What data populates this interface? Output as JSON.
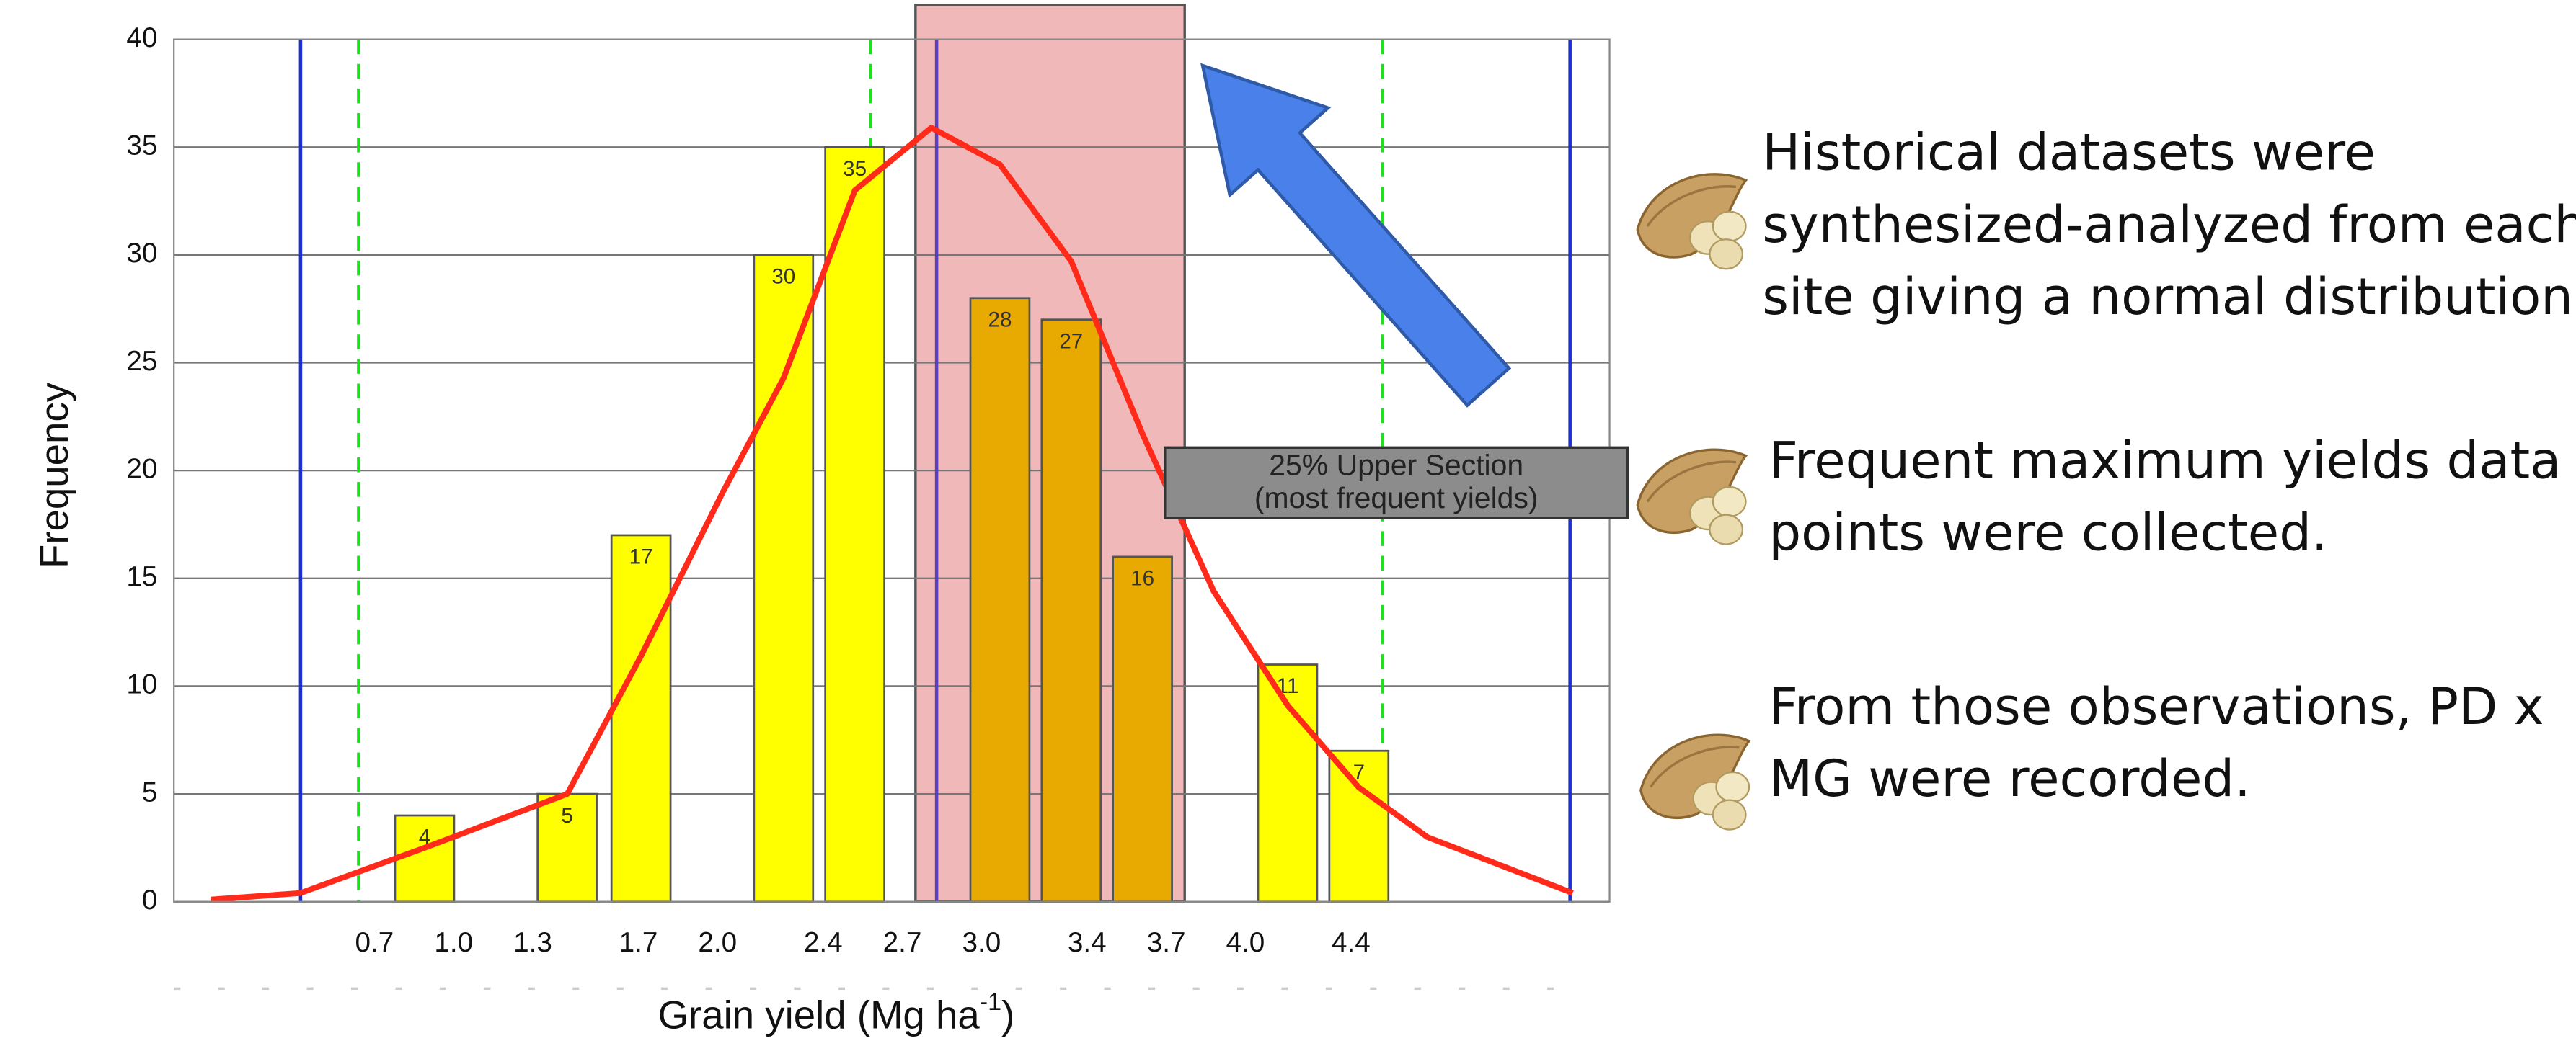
{
  "chart_data": {
    "type": "bar",
    "y_label": "Frequency",
    "x_label": {
      "text": "Grain yield (Mg ha",
      "superscript": "-1",
      "suffix": ")"
    },
    "x": [
      0.89,
      1.43,
      1.71,
      2.25,
      2.52,
      3.07,
      3.34,
      3.61,
      4.16,
      4.43
    ],
    "values": [
      4,
      5,
      17,
      30,
      35,
      28,
      27,
      16,
      11,
      7
    ],
    "colors": [
      "#ffff00",
      "#ffff00",
      "#ffff00",
      "#ffff00",
      "#ffff00",
      "#e8a900",
      "#e8a900",
      "#e8a900",
      "#ffff00",
      "#ffff00"
    ],
    "xlim": [
      -0.06,
      5.38
    ],
    "ylim": [
      0,
      40
    ],
    "yticks": [
      0,
      5,
      10,
      15,
      20,
      25,
      30,
      35,
      40
    ],
    "xticks": [
      0.7,
      {
        "value": 1.0,
        "label": "1.0"
      },
      1.3,
      1.7,
      {
        "value": 2.0,
        "label": "2.0"
      },
      2.4,
      2.7,
      {
        "value": 3.0,
        "label": "3.0"
      },
      3.4,
      3.7,
      {
        "value": 4.0,
        "label": "4.0"
      },
      4.4
    ],
    "grid": true,
    "curve": {
      "color": "#ff2a1a",
      "x": [
        0.08,
        0.42,
        0.89,
        1.43,
        1.71,
        2.02,
        2.25,
        2.52,
        2.81,
        3.07,
        3.34,
        3.61,
        3.88,
        4.16,
        4.43,
        4.69,
        5.24
      ],
      "values": [
        0.1,
        0.4,
        2.5,
        5,
        11.4,
        19,
        24.3,
        33,
        35.9,
        34.2,
        29.7,
        21.7,
        14.4,
        9.1,
        5.3,
        3,
        0.4
      ]
    },
    "reference_lines": [
      {
        "x": 0.42,
        "color": "#1a2fd6",
        "style": "solid"
      },
      {
        "x": 5.23,
        "color": "#1a2fd6",
        "style": "solid"
      },
      {
        "x": 0.64,
        "color": "#22dd22",
        "style": "dashed"
      },
      {
        "x": 2.58,
        "color": "#22dd22",
        "style": "dashed"
      },
      {
        "x": 4.52,
        "color": "#22dd22",
        "style": "dashed"
      },
      {
        "x": 2.83,
        "color": "#5a3fc0",
        "style": "solid"
      }
    ],
    "highlight": {
      "x": [
        2.75,
        3.77
      ],
      "y": [
        0,
        41.6
      ],
      "color": "#eeb0b0"
    },
    "annotation": {
      "lines": [
        "25% Upper Section",
        "(most frequent yields)"
      ]
    }
  },
  "bullets": [
    {
      "lines": [
        "Historical datasets were",
        "synthesized-analyzed from each",
        "site giving a normal distribution."
      ]
    },
    {
      "lines": [
        "Frequent maximum yields data",
        "points were collected."
      ]
    },
    {
      "lines": [
        "From those observations, PD x",
        "MG were recorded."
      ]
    }
  ]
}
